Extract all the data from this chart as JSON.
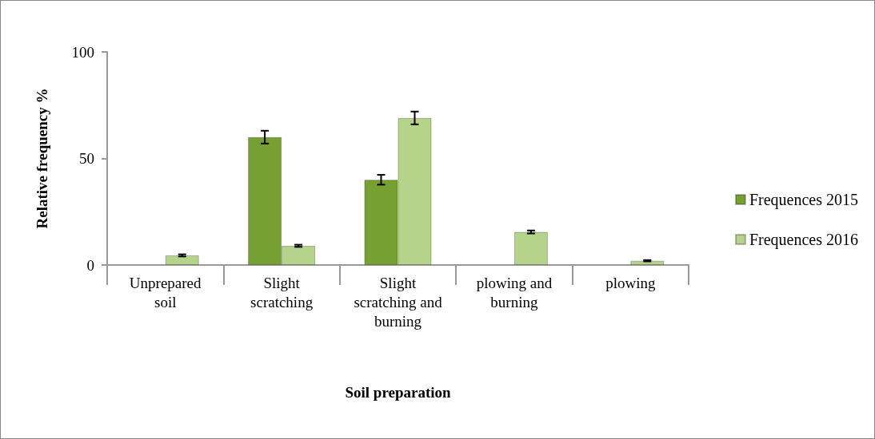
{
  "chart_data": {
    "type": "bar",
    "xlabel": "Soil preparation",
    "ylabel": "Relative frequency %",
    "categories": [
      "Unprepared soil",
      "Slight scratching",
      "Slight scratching and burning",
      "plowing and burning",
      "plowing"
    ],
    "series": [
      {
        "name": "Frequences 2015",
        "color": "#77a033",
        "values": [
          null,
          60,
          40,
          null,
          null
        ],
        "errors": [
          null,
          3,
          2.3,
          null,
          null
        ]
      },
      {
        "name": "Frequences 2016",
        "color": "#b5d48a",
        "values": [
          4.5,
          9,
          69,
          15.5,
          2
        ],
        "errors": [
          0.5,
          0.5,
          3,
          0.7,
          0.3
        ]
      }
    ],
    "ylim": [
      0,
      100
    ],
    "yticks": [
      0,
      50,
      100
    ],
    "grid": false,
    "legend": "right"
  }
}
